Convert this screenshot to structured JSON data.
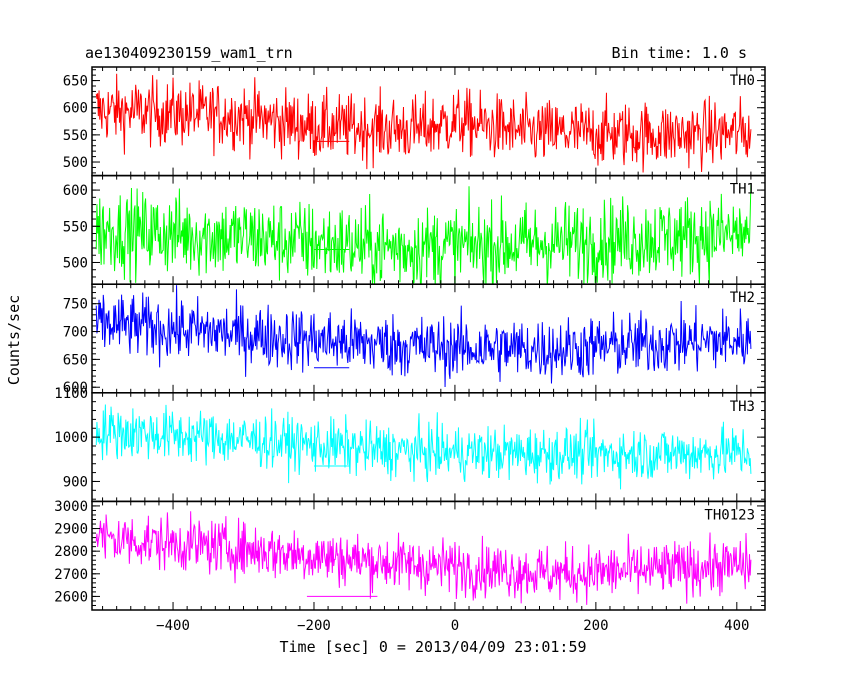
{
  "chart_data": {
    "type": "line",
    "title_left": "ae130409230159_wam1_trn",
    "title_right": "Bin time: 1.0 s",
    "xlabel": "Time [sec] 0 = 2013/04/09 23:01:59",
    "ylabel": "Counts/sec",
    "xlim": [
      -515,
      440
    ],
    "x_ticks": [
      -400,
      -200,
      0,
      200,
      400
    ],
    "x_tick_labels": [
      "−400",
      "−200",
      "0",
      "200",
      "400"
    ],
    "x_range_data": [
      -509,
      420
    ],
    "bin_time": 1.0,
    "panels": [
      {
        "name": "TH0",
        "color": "#ff0000",
        "ylim": [
          475,
          675
        ],
        "y_ticks": [
          500,
          550,
          600,
          650
        ],
        "trend": [
          [
            -509,
            595
          ],
          [
            -300,
            585
          ],
          [
            -200,
            565
          ],
          [
            -50,
            560
          ],
          [
            0,
            575
          ],
          [
            100,
            555
          ],
          [
            300,
            550
          ],
          [
            420,
            555
          ]
        ],
        "noise": 30,
        "error_bar": {
          "x0": -200,
          "x1": -150,
          "y": 538
        }
      },
      {
        "name": "TH1",
        "color": "#00ff00",
        "ylim": [
          470,
          620
        ],
        "y_ticks": [
          500,
          550,
          600
        ],
        "trend": [
          [
            -509,
            545
          ],
          [
            -300,
            535
          ],
          [
            -100,
            520
          ],
          [
            100,
            525
          ],
          [
            300,
            535
          ],
          [
            420,
            540
          ]
        ],
        "noise": 28,
        "error_bar": {
          "x0": -200,
          "x1": -150,
          "y": 518
        }
      },
      {
        "name": "TH2",
        "color": "#0000ff",
        "ylim": [
          590,
          785
        ],
        "y_ticks": [
          600,
          650,
          700,
          750
        ],
        "trend": [
          [
            -509,
            715
          ],
          [
            -300,
            695
          ],
          [
            -150,
            680
          ],
          [
            0,
            670
          ],
          [
            150,
            668
          ],
          [
            300,
            680
          ],
          [
            420,
            685
          ]
        ],
        "noise": 28,
        "error_bar": {
          "x0": -200,
          "x1": -150,
          "y": 635
        }
      },
      {
        "name": "TH3",
        "color": "#00ffff",
        "ylim": [
          855,
          1100
        ],
        "y_ticks": [
          900,
          1000,
          1100
        ],
        "trend": [
          [
            -509,
            1015
          ],
          [
            -300,
            995
          ],
          [
            -100,
            970
          ],
          [
            0,
            965
          ],
          [
            200,
            962
          ],
          [
            420,
            965
          ]
        ],
        "noise": 30,
        "error_bar": {
          "x0": -200,
          "x1": -150,
          "y": 935
        }
      },
      {
        "name": "TH0123",
        "color": "#ff00ff",
        "ylim": [
          2540,
          3020
        ],
        "y_ticks": [
          2600,
          2700,
          2800,
          2900,
          3000
        ],
        "trend": [
          [
            -509,
            2860
          ],
          [
            -300,
            2810
          ],
          [
            -100,
            2750
          ],
          [
            50,
            2720
          ],
          [
            150,
            2700
          ],
          [
            300,
            2720
          ],
          [
            420,
            2740
          ]
        ],
        "noise": 60,
        "error_bar": {
          "x0": -210,
          "x1": -110,
          "y": 2600
        }
      }
    ]
  }
}
